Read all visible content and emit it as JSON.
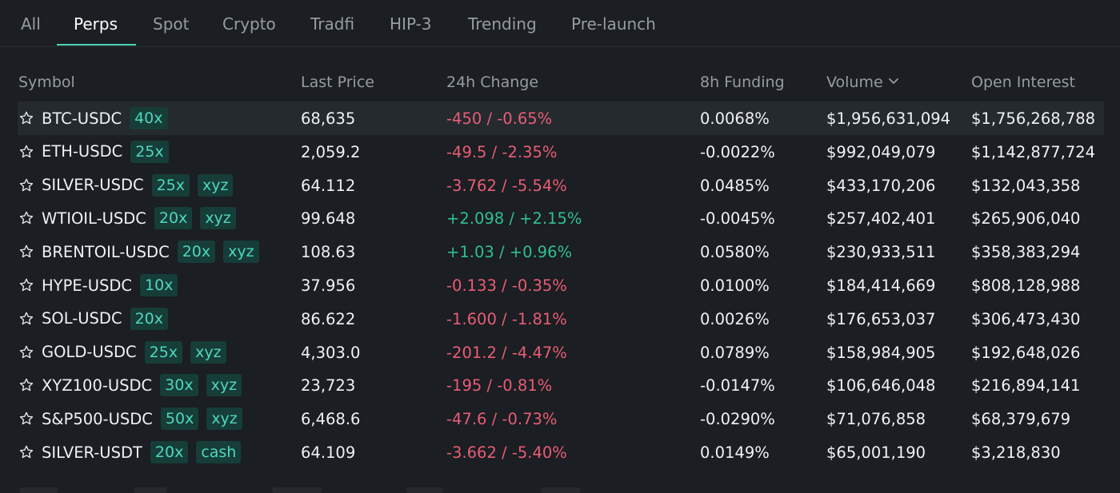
{
  "tabs": [
    {
      "label": "All",
      "active": false
    },
    {
      "label": "Perps",
      "active": true
    },
    {
      "label": "Spot",
      "active": false
    },
    {
      "label": "Crypto",
      "active": false
    },
    {
      "label": "Tradfi",
      "active": false
    },
    {
      "label": "HIP-3",
      "active": false
    },
    {
      "label": "Trending",
      "active": false
    },
    {
      "label": "Pre-launch",
      "active": false
    }
  ],
  "columns": {
    "symbol": "Symbol",
    "last_price": "Last Price",
    "change": "24h Change",
    "funding": "8h Funding",
    "volume": "Volume",
    "open_interest": "Open Interest"
  },
  "sort": {
    "column": "volume",
    "direction": "desc",
    "icon": "chevron-down-icon"
  },
  "colors": {
    "accent": "#4fd6bd",
    "negative": "#e85d75",
    "positive": "#2fbf8f",
    "background": "#1b1e22"
  },
  "rows": [
    {
      "symbol": "BTC-USDC",
      "leverage": "40x",
      "tag": "",
      "price": "68,635",
      "change": "-450 / -0.65%",
      "direction": "neg",
      "funding": "0.0068%",
      "volume": "$1,956,631,094",
      "oi": "$1,756,268,788",
      "highlighted": true
    },
    {
      "symbol": "ETH-USDC",
      "leverage": "25x",
      "tag": "",
      "price": "2,059.2",
      "change": "-49.5 / -2.35%",
      "direction": "neg",
      "funding": "-0.0022%",
      "volume": "$992,049,079",
      "oi": "$1,142,877,724"
    },
    {
      "symbol": "SILVER-USDC",
      "leverage": "25x",
      "tag": "xyz",
      "price": "64.112",
      "change": "-3.762 / -5.54%",
      "direction": "neg",
      "funding": "0.0485%",
      "volume": "$433,170,206",
      "oi": "$132,043,358"
    },
    {
      "symbol": "WTIOIL-USDC",
      "leverage": "20x",
      "tag": "xyz",
      "price": "99.648",
      "change": "+2.098 / +2.15%",
      "direction": "pos",
      "funding": "-0.0045%",
      "volume": "$257,402,401",
      "oi": "$265,906,040"
    },
    {
      "symbol": "BRENTOIL-USDC",
      "leverage": "20x",
      "tag": "xyz",
      "price": "108.63",
      "change": "+1.03 / +0.96%",
      "direction": "pos",
      "funding": "0.0580%",
      "volume": "$230,933,511",
      "oi": "$358,383,294"
    },
    {
      "symbol": "HYPE-USDC",
      "leverage": "10x",
      "tag": "",
      "price": "37.956",
      "change": "-0.133 / -0.35%",
      "direction": "neg",
      "funding": "0.0100%",
      "volume": "$184,414,669",
      "oi": "$808,128,988"
    },
    {
      "symbol": "SOL-USDC",
      "leverage": "20x",
      "tag": "",
      "price": "86.622",
      "change": "-1.600 / -1.81%",
      "direction": "neg",
      "funding": "0.0026%",
      "volume": "$176,653,037",
      "oi": "$306,473,430"
    },
    {
      "symbol": "GOLD-USDC",
      "leverage": "25x",
      "tag": "xyz",
      "price": "4,303.0",
      "change": "-201.2 / -4.47%",
      "direction": "neg",
      "funding": "0.0789%",
      "volume": "$158,984,905",
      "oi": "$192,648,026"
    },
    {
      "symbol": "XYZ100-USDC",
      "leverage": "30x",
      "tag": "xyz",
      "price": "23,723",
      "change": "-195 / -0.81%",
      "direction": "neg",
      "funding": "-0.0147%",
      "volume": "$106,646,048",
      "oi": "$216,894,141"
    },
    {
      "symbol": "S&P500-USDC",
      "leverage": "50x",
      "tag": "xyz",
      "price": "6,468.6",
      "change": "-47.6 / -0.73%",
      "direction": "neg",
      "funding": "-0.0290%",
      "volume": "$71,076,858",
      "oi": "$68,379,679"
    },
    {
      "symbol": "SILVER-USDT",
      "leverage": "20x",
      "tag": "cash",
      "price": "64.109",
      "change": "-3.662 / -5.40%",
      "direction": "neg",
      "funding": "0.0149%",
      "volume": "$65,001,190",
      "oi": "$3,218,830"
    }
  ]
}
